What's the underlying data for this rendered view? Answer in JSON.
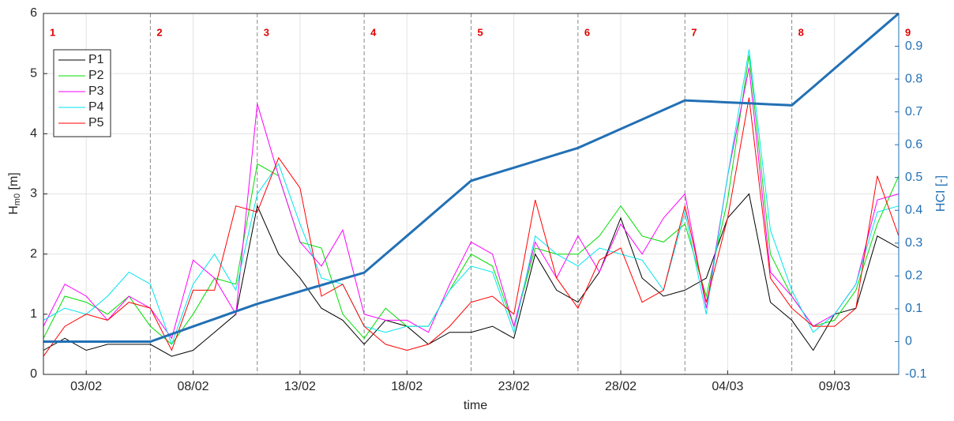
{
  "chart_data": {
    "type": "line",
    "xlabel": "time",
    "ylabel": "H",
    "ylabel_sub": "m0",
    "ylabel_unit": " [m]",
    "y2label": "HCI [-]",
    "categories": [
      null,
      null,
      "03/02",
      null,
      null,
      null,
      null,
      "08/02",
      null,
      null,
      null,
      null,
      "13/02",
      null,
      null,
      null,
      null,
      "18/02",
      null,
      null,
      null,
      null,
      "23/02",
      null,
      null,
      null,
      null,
      "28/02",
      null,
      null,
      null,
      null,
      "04/03",
      null,
      null,
      null,
      null,
      "09/03",
      null,
      null,
      null
    ],
    "ylim": [
      0,
      6
    ],
    "yticks": [
      0,
      1,
      2,
      3,
      4,
      5,
      6
    ],
    "y2lim": [
      -0.1,
      1.0
    ],
    "y2ticks": [
      -0.1,
      0,
      0.1,
      0.2,
      0.3,
      0.4,
      0.5,
      0.6,
      0.7,
      0.8,
      0.9
    ],
    "grid": true,
    "legend": "upper left",
    "periods": [
      "1",
      "2",
      "3",
      "4",
      "5",
      "6",
      "7",
      "8",
      "9"
    ],
    "series": [
      {
        "name": "P1",
        "color": "#000000",
        "values": [
          0.4,
          0.6,
          0.4,
          0.5,
          0.5,
          0.5,
          0.3,
          0.4,
          0.7,
          1.0,
          2.8,
          2.0,
          1.6,
          1.1,
          0.9,
          0.5,
          0.9,
          0.8,
          0.5,
          0.7,
          0.7,
          0.8,
          0.6,
          2.0,
          1.4,
          1.2,
          1.7,
          2.6,
          1.6,
          1.3,
          1.4,
          1.6,
          2.6,
          3.0,
          1.2,
          0.9,
          0.4,
          1.0,
          1.1,
          2.3,
          2.1
        ]
      },
      {
        "name": "P2",
        "color": "#00dd00",
        "values": [
          0.6,
          1.3,
          1.2,
          1.0,
          1.3,
          0.8,
          0.5,
          1.0,
          1.6,
          1.5,
          3.5,
          3.3,
          2.2,
          2.1,
          1.0,
          0.6,
          1.1,
          0.8,
          0.8,
          1.4,
          2.0,
          1.8,
          0.8,
          2.1,
          2.0,
          2.0,
          2.3,
          2.8,
          2.3,
          2.2,
          2.5,
          1.3,
          2.9,
          5.3,
          2.0,
          1.3,
          0.8,
          0.9,
          1.4,
          2.5,
          3.3
        ]
      },
      {
        "name": "P3",
        "color": "#ff00ff",
        "values": [
          0.8,
          1.5,
          1.3,
          0.9,
          1.3,
          1.1,
          0.6,
          1.9,
          1.6,
          1.0,
          4.5,
          3.3,
          2.2,
          1.8,
          2.4,
          1.0,
          0.9,
          0.9,
          0.7,
          1.5,
          2.2,
          2.0,
          0.8,
          2.2,
          1.6,
          2.3,
          1.7,
          2.5,
          2.0,
          2.6,
          3.0,
          1.1,
          3.3,
          5.1,
          1.7,
          1.3,
          0.8,
          1.0,
          1.5,
          2.9,
          3.0
        ]
      },
      {
        "name": "P4",
        "color": "#00e5ee",
        "values": [
          0.9,
          1.1,
          1.0,
          1.3,
          1.7,
          1.5,
          0.5,
          1.5,
          2.0,
          1.4,
          3.0,
          3.5,
          2.5,
          1.6,
          1.5,
          0.8,
          0.7,
          0.8,
          0.8,
          1.4,
          1.8,
          1.7,
          0.7,
          2.3,
          2.0,
          1.8,
          2.1,
          2.0,
          1.9,
          1.4,
          2.7,
          1.0,
          3.3,
          5.4,
          2.4,
          1.4,
          0.7,
          1.0,
          1.5,
          2.7,
          2.8
        ]
      },
      {
        "name": "P5",
        "color": "#ff0000",
        "values": [
          0.3,
          0.8,
          1.0,
          0.9,
          1.2,
          1.1,
          0.4,
          1.4,
          1.4,
          2.8,
          2.7,
          3.6,
          3.1,
          1.3,
          1.5,
          0.8,
          0.5,
          0.4,
          0.5,
          0.8,
          1.2,
          1.3,
          1.0,
          2.9,
          1.6,
          1.1,
          1.9,
          2.1,
          1.2,
          1.4,
          2.8,
          1.2,
          2.6,
          4.6,
          1.6,
          1.1,
          0.8,
          0.8,
          1.1,
          3.3,
          2.3
        ]
      },
      {
        "name": "HCI",
        "color": "#2270b5",
        "axis": "y2",
        "values": [
          0,
          0,
          0,
          0,
          0,
          0,
          0.023,
          0.046,
          0.069,
          0.092,
          0.115,
          0.134,
          0.153,
          0.172,
          0.191,
          0.21,
          0.266,
          0.322,
          0.378,
          0.434,
          0.49,
          0.51,
          0.53,
          0.55,
          0.57,
          0.59,
          0.619,
          0.648,
          0.677,
          0.706,
          0.735,
          0.732,
          0.729,
          0.726,
          0.723,
          0.72,
          0.776,
          0.832,
          0.888,
          0.944,
          1.0
        ]
      }
    ]
  }
}
